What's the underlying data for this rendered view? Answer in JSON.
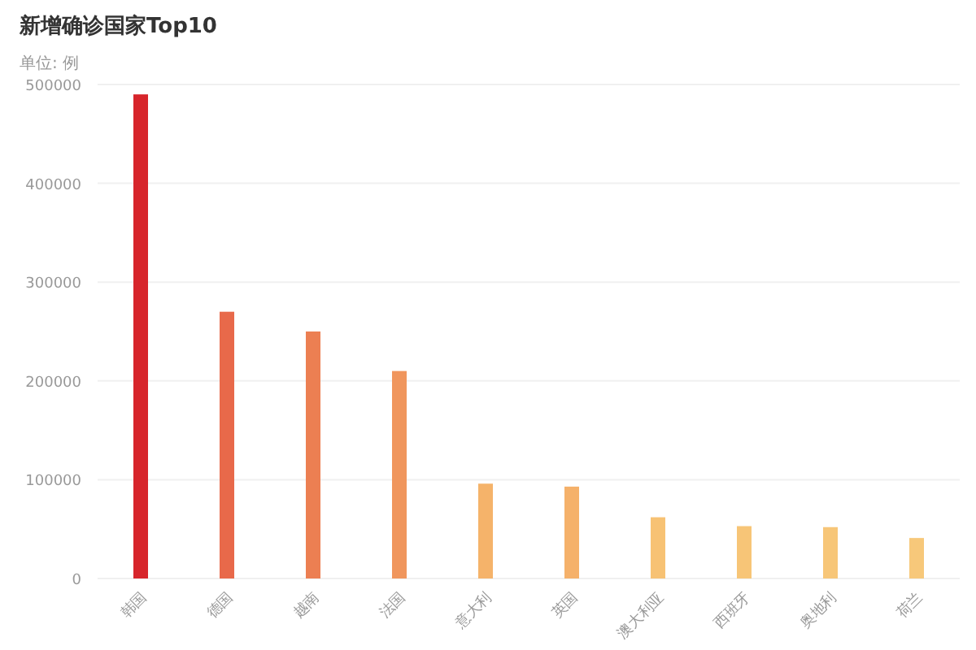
{
  "chart_data": {
    "type": "bar",
    "title": "新增确诊国家Top10",
    "subtitle": "单位: 例",
    "categories": [
      "韩国",
      "德国",
      "越南",
      "法国",
      "意大利",
      "英国",
      "澳大利亚",
      "西班牙",
      "奥地利",
      "荷兰"
    ],
    "values": [
      490000,
      270000,
      250000,
      210000,
      96000,
      93000,
      62000,
      53000,
      52000,
      41000
    ],
    "colors": [
      "#d7252b",
      "#e8694a",
      "#ec7f52",
      "#f0965d",
      "#f5b36a",
      "#f5b16a",
      "#f7c274",
      "#f7c577",
      "#f7c678",
      "#f7c87a"
    ],
    "ylim": [
      0,
      500000
    ],
    "yticks": [
      0,
      100000,
      200000,
      300000,
      400000,
      500000
    ],
    "grid": "y"
  }
}
